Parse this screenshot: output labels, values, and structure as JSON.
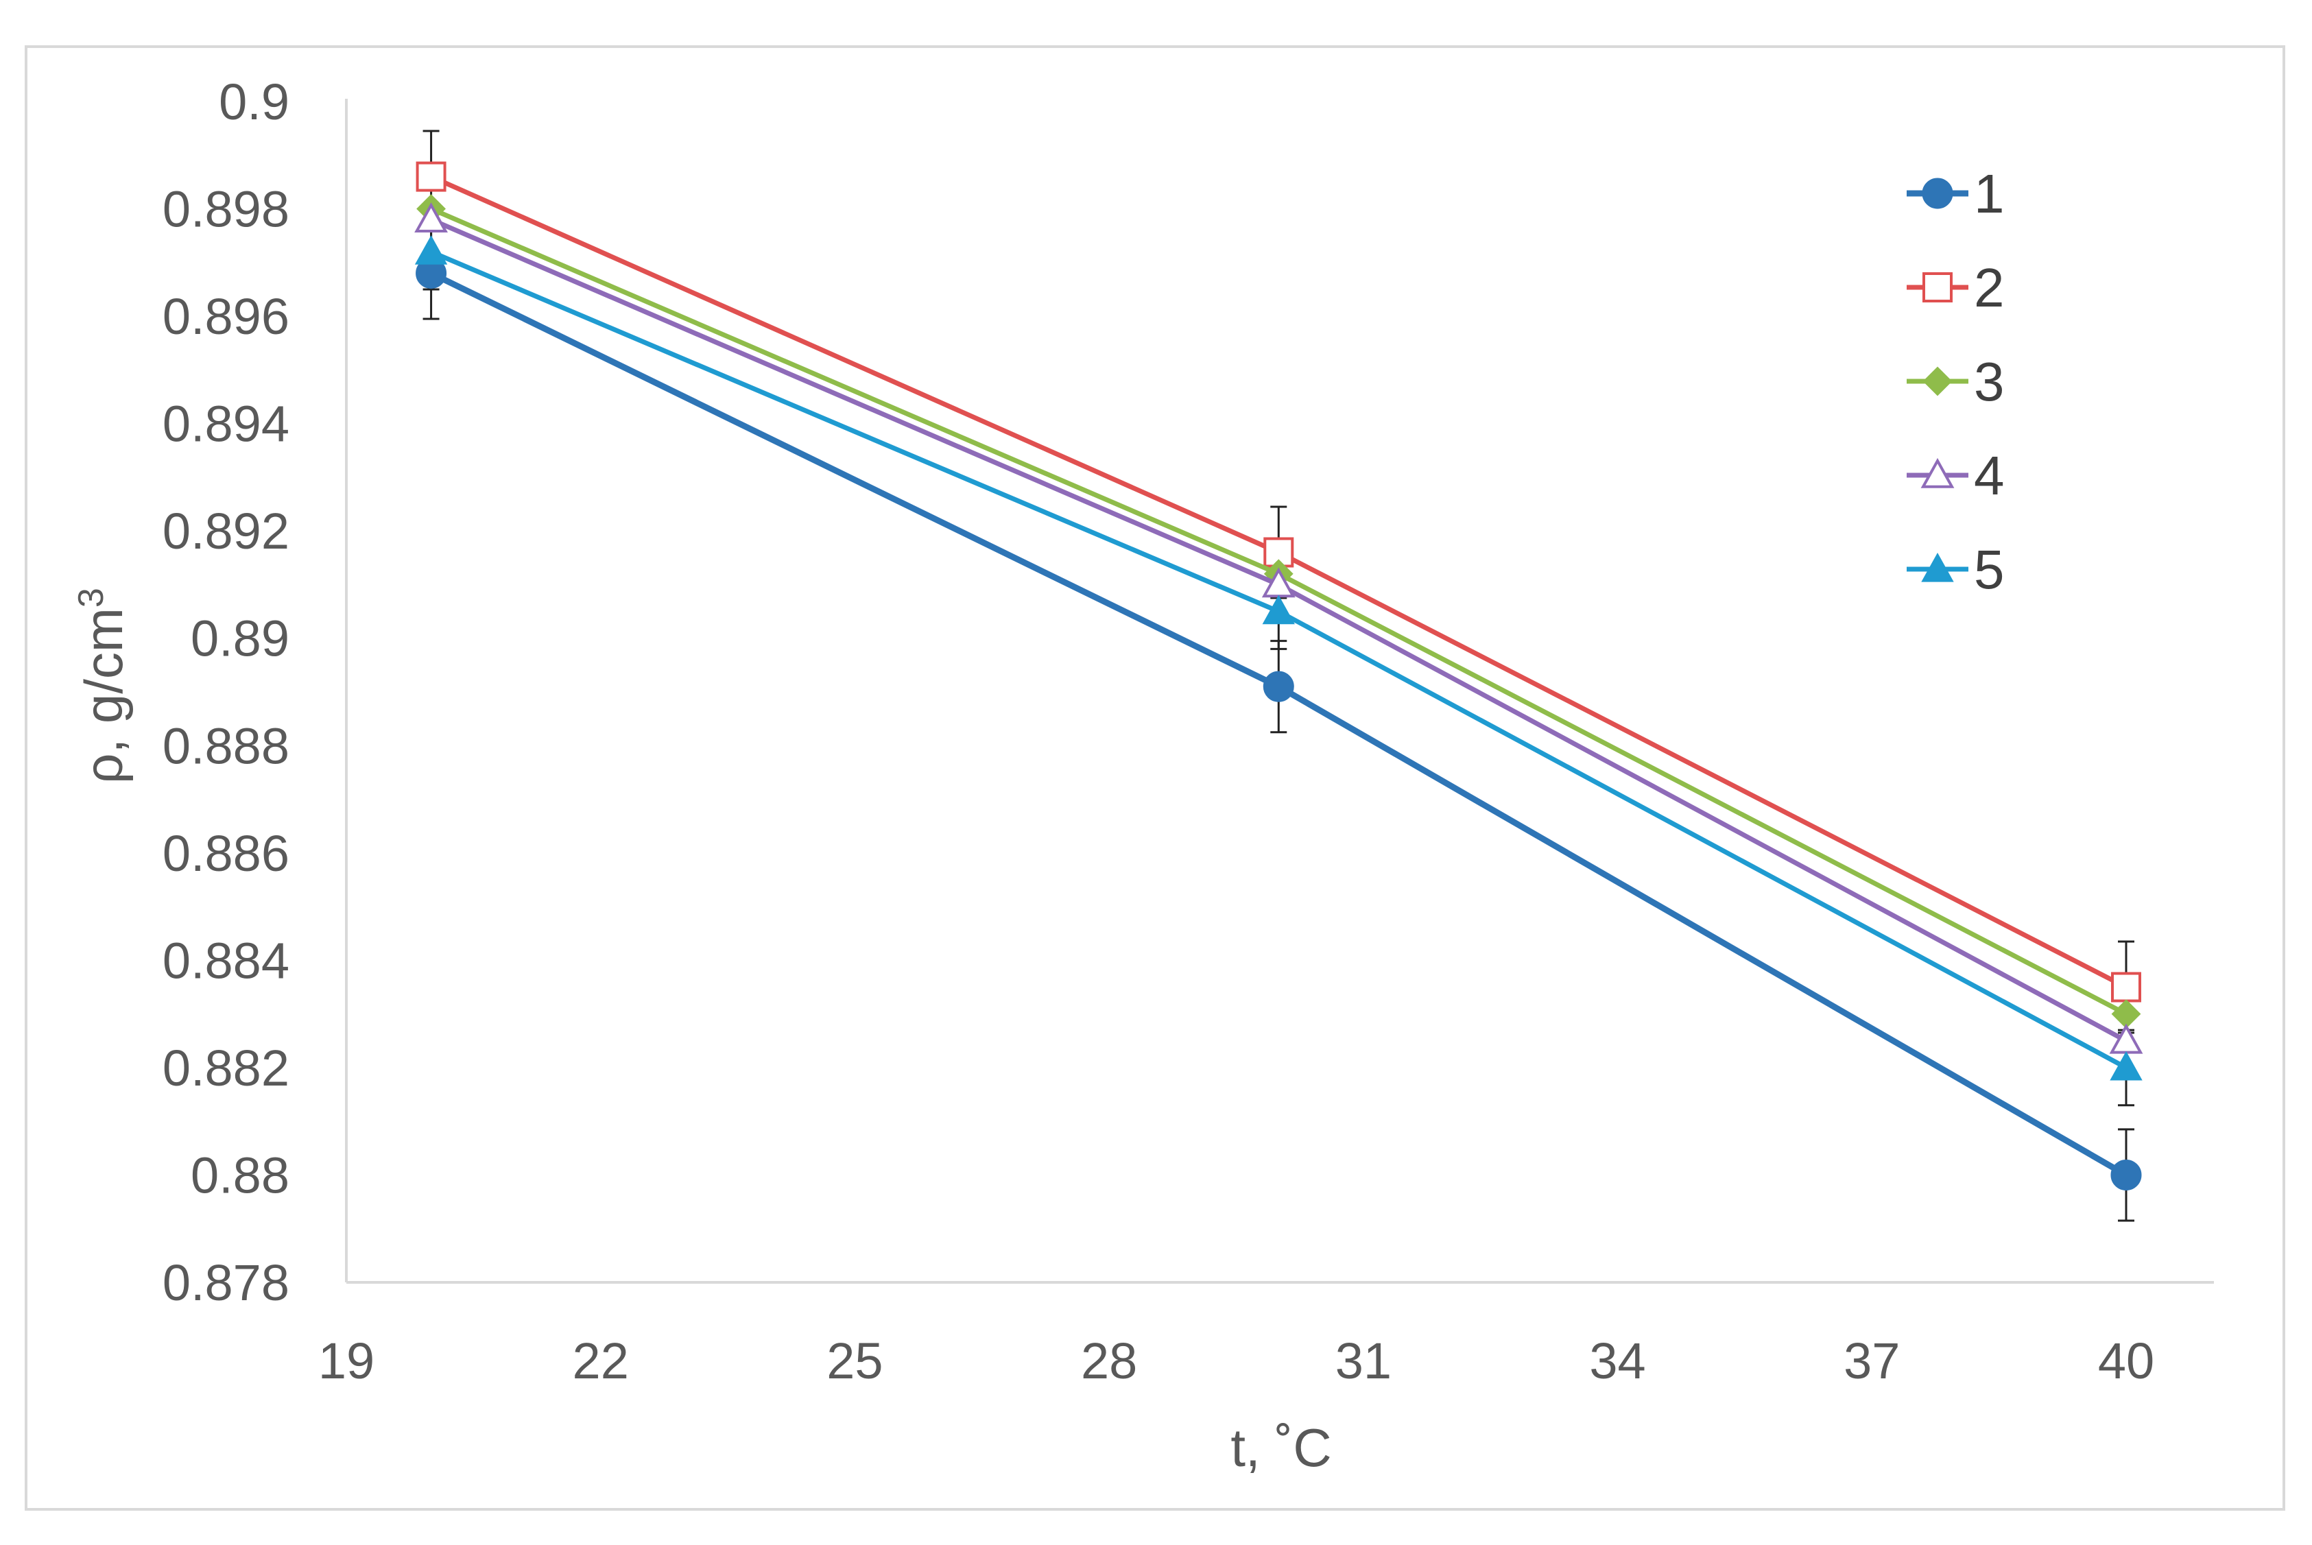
{
  "chart_data": {
    "type": "line",
    "title": "",
    "xlabel": "t, ˚C",
    "ylabel_main": "ρ, g/cm",
    "ylabel_sup": "3",
    "xlim": [
      19,
      40
    ],
    "ylim": [
      0.878,
      0.9
    ],
    "xticks": [
      "19",
      "22",
      "25",
      "28",
      "31",
      "34",
      "37",
      "40"
    ],
    "yticks": [
      "0.878",
      "0.88",
      "0.882",
      "0.884",
      "0.886",
      "0.888",
      "0.89",
      "0.892",
      "0.894",
      "0.896",
      "0.898",
      "0.9"
    ],
    "grid": false,
    "legend_position": "top-right",
    "x": [
      20,
      30,
      40
    ],
    "series": [
      {
        "name": "1",
        "values": [
          0.8968,
          0.8891,
          0.88
        ],
        "color": "#2e75b6",
        "marker": "circle-filled",
        "error": 0.00085
      },
      {
        "name": "2",
        "values": [
          0.8986,
          0.8916,
          0.8835
        ],
        "color": "#e05050",
        "marker": "square-open",
        "error": 0.00085
      },
      {
        "name": "3",
        "values": [
          0.898,
          0.8912,
          0.883
        ],
        "color": "#8fbc4a",
        "marker": "diamond-filled",
        "error": 0.0
      },
      {
        "name": "4",
        "values": [
          0.8978,
          0.891,
          0.8825
        ],
        "color": "#8e6bb8",
        "marker": "triangle-open",
        "error": 0.0
      },
      {
        "name": "5",
        "values": [
          0.8972,
          0.8905,
          0.882
        ],
        "color": "#1f9bd1",
        "marker": "triangle-filled",
        "error": 0.0007
      }
    ]
  }
}
